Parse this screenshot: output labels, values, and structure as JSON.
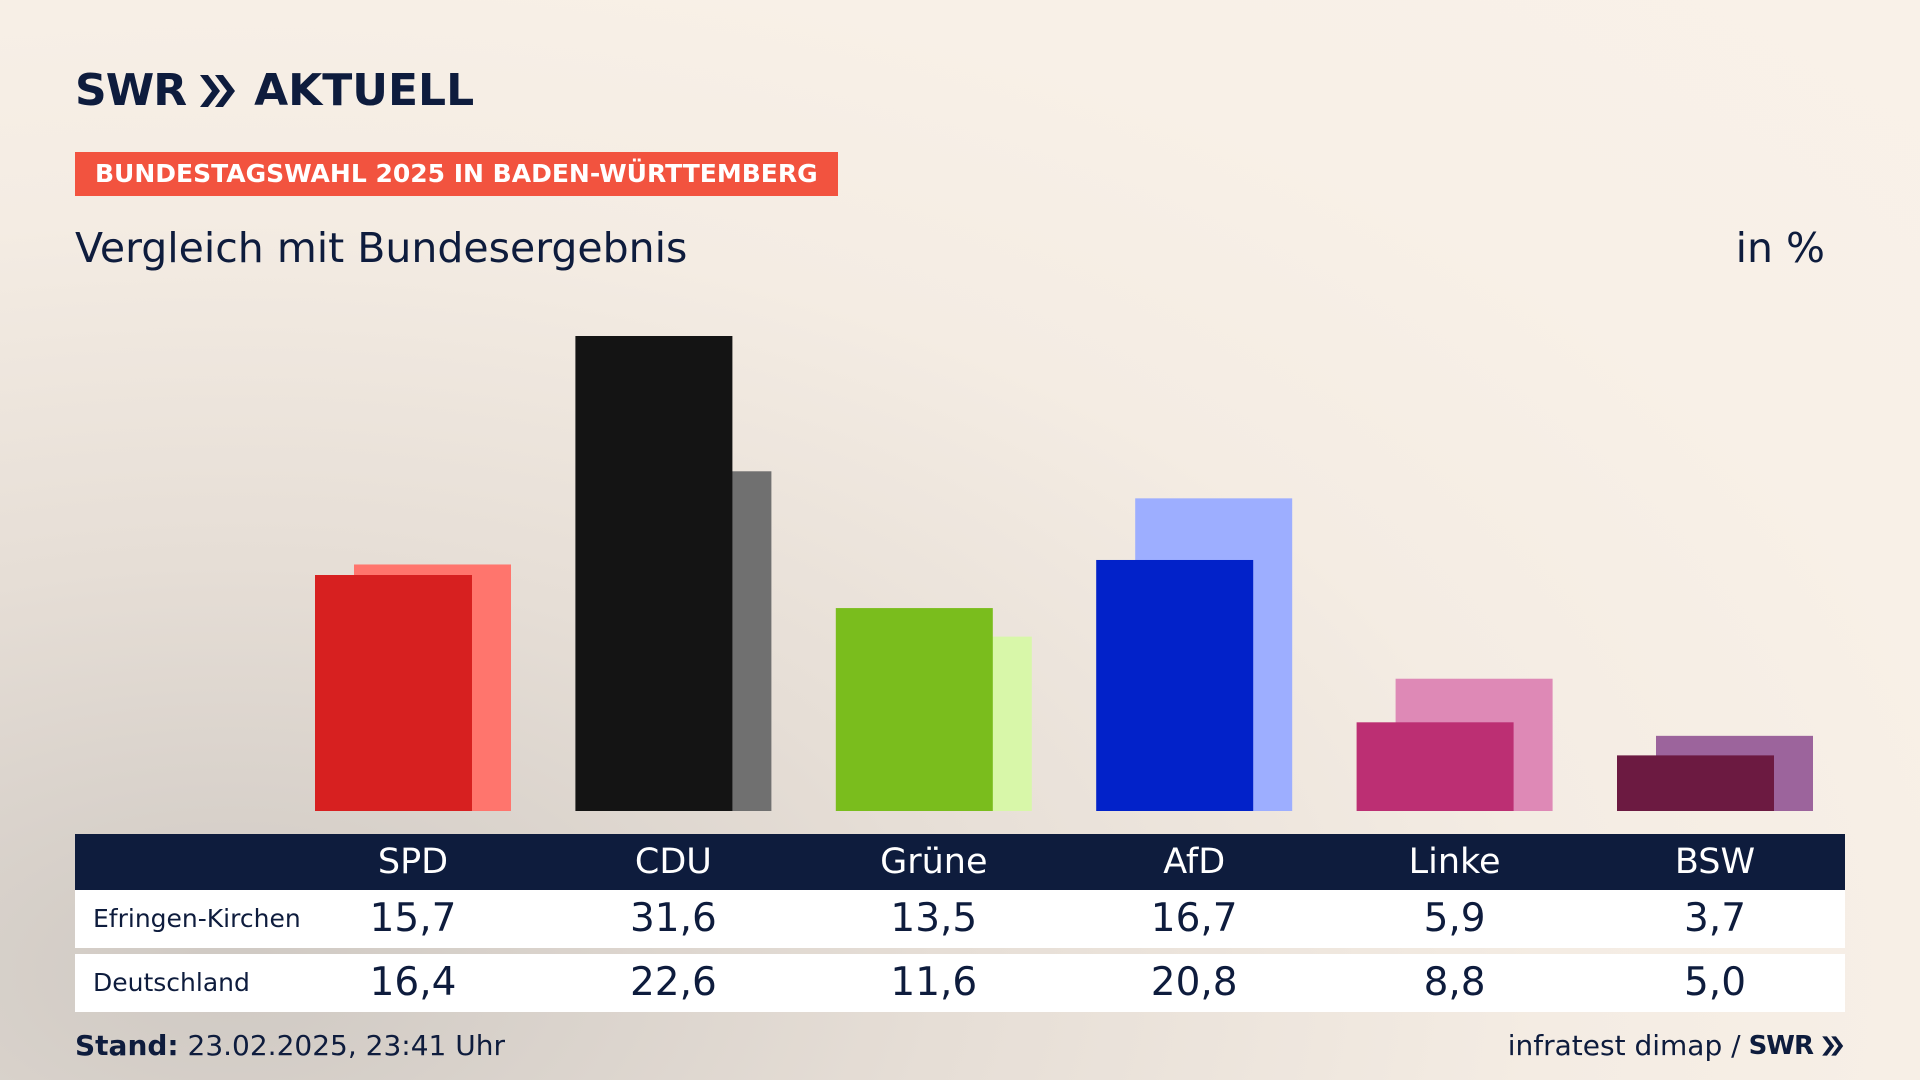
{
  "header": {
    "logo_swr": "SWR",
    "logo_aktuell": "AKTUELL",
    "banner": "BUNDESTAGSWAHL 2025 IN BADEN-WÜRTTEMBERG",
    "subtitle": "Vergleich mit Bundesergebnis",
    "unit": "in %"
  },
  "chart_data": {
    "type": "bar",
    "categories": [
      "SPD",
      "CDU",
      "Grüne",
      "AfD",
      "Linke",
      "BSW"
    ],
    "series": [
      {
        "name": "Efringen-Kirchen",
        "values": [
          15.7,
          31.6,
          13.5,
          16.7,
          5.9,
          3.7
        ],
        "colors": [
          "#d72020",
          "#141414",
          "#7abd1d",
          "#0222c9",
          "#bc2f73",
          "#6c1a41"
        ]
      },
      {
        "name": "Deutschland",
        "values": [
          16.4,
          22.6,
          11.6,
          20.8,
          8.8,
          5.0
        ],
        "colors": [
          "#ff756d",
          "#707070",
          "#d8f7a9",
          "#9daeff",
          "#de89b6",
          "#9c649c"
        ]
      }
    ],
    "display_values": [
      [
        "15,7",
        "31,6",
        "13,5",
        "16,7",
        "5,9",
        "3,7"
      ],
      [
        "16,4",
        "22,6",
        "11,6",
        "20,8",
        "8,8",
        "5,0"
      ]
    ],
    "ylim": [
      0,
      31.6
    ],
    "grid": false,
    "legend": "table below chart"
  },
  "footer": {
    "stand_label": "Stand:",
    "stand_value": " 23.02.2025, 23:41 Uhr",
    "source": "infratest dimap /",
    "source_logo": "SWR"
  },
  "colors": {
    "navy": "#0e1c3d",
    "banner": "#f2533f"
  }
}
